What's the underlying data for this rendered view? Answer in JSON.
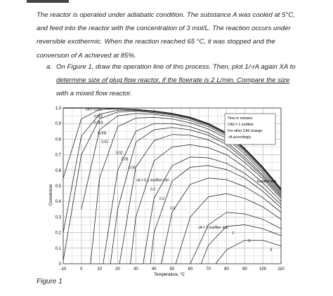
{
  "problem": {
    "paragraph_lines": [
      "The reactor is operated under adiabatic condition. The substance A was cooled at 5°C,",
      "and feed into the reactor with the concentration of 3 mol/L. The reaction occurs under",
      "reversible exothermic. When the reaction reached 65 °C, it was stopped and the",
      "conversion of A achieved at 85%."
    ],
    "task_label": "a.",
    "task_lines": [
      "On Figure 1, draw the operation line of this process. Then, plot 1/-rA again XA to",
      "determine size of plug flow reactor, if the flowrate is 2 L/min. Compare the size",
      "with a mixed flow reactor."
    ]
  },
  "figure": {
    "caption": "Figure 1",
    "x_axis_label": "Temperature, °C",
    "y_axis_label": "Conversion",
    "x_ticks": [
      "-10",
      "0",
      "10",
      "20",
      "30",
      "40",
      "50",
      "60",
      "70",
      "80",
      "90",
      "100",
      "110"
    ],
    "y_ticks": [
      "0",
      "0.1",
      "0.2",
      "0.3",
      "0.4",
      "0.5",
      "0.6",
      "0.7",
      "0.8",
      "0.9",
      "1.0"
    ],
    "legend_box": [
      "Time in minutes",
      "CA0 = 1 mol/liter",
      "For other CA0 change",
      "-rA accordingly"
    ],
    "equilibrium_label": "Equilibrium",
    "rate_labels": [
      "-rA = 0.001",
      "0.002",
      "0.003",
      "0.005",
      "0.01",
      "0.02",
      "0.03",
      "0.05",
      "-rA = 0.1 mol/liter·min",
      "0.2",
      "0.3",
      "0.5",
      "-rA = 1 mol/liter·min",
      "2",
      "3",
      "5"
    ]
  },
  "chart_data": {
    "type": "line",
    "xlabel": "Temperature, °C",
    "ylabel": "Conversion",
    "xlim": [
      -10,
      110
    ],
    "ylim": [
      0,
      1.0
    ],
    "grid": true,
    "series": [
      {
        "name": "Equilibrium",
        "x": [
          -10,
          0,
          10,
          20,
          30,
          40,
          50,
          60,
          70,
          80,
          90,
          100,
          110
        ],
        "y": [
          1.0,
          1.0,
          1.0,
          0.995,
          0.99,
          0.98,
          0.965,
          0.94,
          0.9,
          0.84,
          0.74,
          0.62,
          0.48
        ]
      },
      {
        "name": "-rA = 0.001",
        "x": [
          -10,
          0,
          10,
          20,
          30,
          40,
          50,
          60,
          70,
          80,
          90,
          100,
          110
        ],
        "y": [
          0.55,
          0.93,
          0.99,
          0.995,
          0.99,
          0.98,
          0.965,
          0.94,
          0.9,
          0.84,
          0.74,
          0.62,
          0.48
        ]
      },
      {
        "name": "0.002",
        "x": [
          -10,
          0,
          10,
          20,
          30,
          40,
          50,
          60,
          70,
          80,
          90,
          100,
          110
        ],
        "y": [
          0.2,
          0.82,
          0.96,
          0.985,
          0.985,
          0.975,
          0.96,
          0.935,
          0.895,
          0.835,
          0.735,
          0.615,
          0.475
        ]
      },
      {
        "name": "0.003",
        "x": [
          -10,
          0,
          10,
          20,
          30,
          40,
          50,
          60,
          70,
          80,
          90,
          100,
          110
        ],
        "y": [
          0.02,
          0.7,
          0.93,
          0.975,
          0.98,
          0.97,
          0.955,
          0.93,
          0.89,
          0.83,
          0.73,
          0.61,
          0.47
        ]
      },
      {
        "name": "0.005",
        "x": [
          0,
          10,
          20,
          30,
          40,
          50,
          60,
          70,
          80,
          90,
          100,
          110
        ],
        "y": [
          0.35,
          0.86,
          0.95,
          0.965,
          0.96,
          0.945,
          0.92,
          0.88,
          0.82,
          0.72,
          0.6,
          0.46
        ]
      },
      {
        "name": "0.01",
        "x": [
          5,
          10,
          20,
          30,
          40,
          50,
          60,
          70,
          80,
          90,
          100,
          110
        ],
        "y": [
          0.0,
          0.55,
          0.88,
          0.935,
          0.94,
          0.93,
          0.905,
          0.865,
          0.805,
          0.705,
          0.585,
          0.45
        ]
      },
      {
        "name": "0.02",
        "x": [
          12,
          20,
          30,
          40,
          50,
          60,
          70,
          80,
          90,
          100,
          110
        ],
        "y": [
          0.0,
          0.6,
          0.85,
          0.9,
          0.9,
          0.88,
          0.84,
          0.78,
          0.685,
          0.57,
          0.44
        ]
      },
      {
        "name": "0.03",
        "x": [
          16,
          20,
          30,
          40,
          50,
          60,
          70,
          80,
          90,
          100,
          110
        ],
        "y": [
          0.0,
          0.35,
          0.78,
          0.86,
          0.875,
          0.86,
          0.825,
          0.765,
          0.67,
          0.56,
          0.43
        ]
      },
      {
        "name": "0.05",
        "x": [
          21,
          30,
          40,
          50,
          60,
          70,
          80,
          90,
          100,
          110
        ],
        "y": [
          0.0,
          0.62,
          0.79,
          0.83,
          0.825,
          0.795,
          0.74,
          0.65,
          0.545,
          0.42
        ]
      },
      {
        "name": "-rA = 0.1",
        "x": [
          27,
          30,
          40,
          50,
          60,
          70,
          80,
          90,
          100,
          110
        ],
        "y": [
          0.0,
          0.3,
          0.66,
          0.75,
          0.765,
          0.745,
          0.7,
          0.62,
          0.52,
          0.4
        ]
      },
      {
        "name": "0.2",
        "x": [
          34,
          40,
          50,
          60,
          70,
          80,
          90,
          100,
          110
        ],
        "y": [
          0.0,
          0.42,
          0.63,
          0.685,
          0.68,
          0.645,
          0.58,
          0.49,
          0.38
        ]
      },
      {
        "name": "0.3",
        "x": [
          38,
          40,
          50,
          60,
          70,
          80,
          90,
          100,
          110
        ],
        "y": [
          0.0,
          0.2,
          0.53,
          0.62,
          0.63,
          0.605,
          0.55,
          0.465,
          0.36
        ]
      },
      {
        "name": "0.5",
        "x": [
          44,
          50,
          60,
          70,
          80,
          90,
          100,
          110
        ],
        "y": [
          0.0,
          0.33,
          0.51,
          0.55,
          0.54,
          0.495,
          0.425,
          0.33
        ]
      },
      {
        "name": "-rA = 1",
        "x": [
          52,
          60,
          70,
          80,
          90,
          100,
          110
        ],
        "y": [
          0.0,
          0.3,
          0.43,
          0.45,
          0.42,
          0.365,
          0.285
        ]
      },
      {
        "name": "2",
        "x": [
          60,
          70,
          80,
          90,
          100,
          110
        ],
        "y": [
          0.0,
          0.25,
          0.33,
          0.32,
          0.285,
          0.225
        ]
      },
      {
        "name": "3",
        "x": [
          66,
          70,
          80,
          90,
          100,
          110
        ],
        "y": [
          0.0,
          0.12,
          0.24,
          0.25,
          0.225,
          0.18
        ]
      },
      {
        "name": "5",
        "x": [
          74,
          80,
          90,
          100,
          110
        ],
        "y": [
          0.0,
          0.09,
          0.15,
          0.15,
          0.115
        ]
      }
    ]
  }
}
